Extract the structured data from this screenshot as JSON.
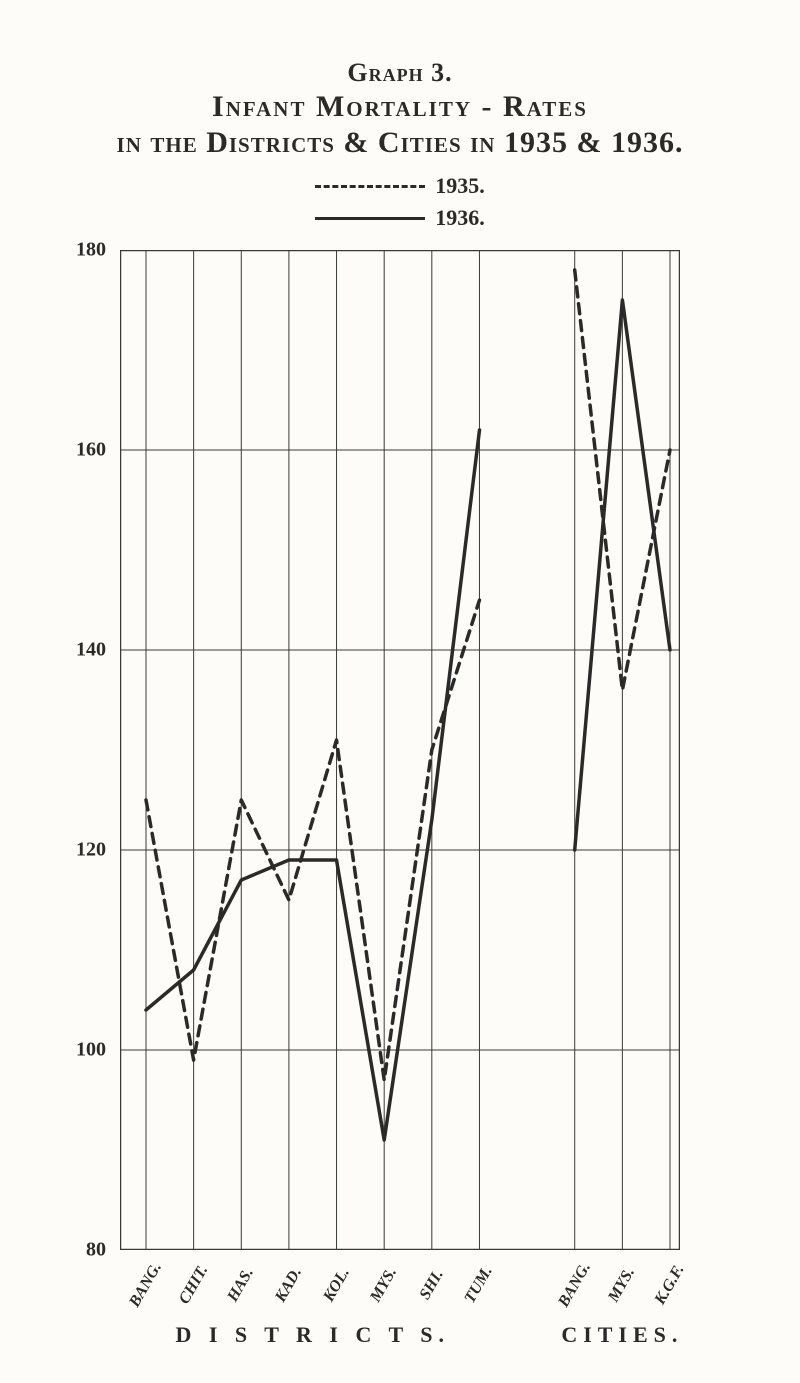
{
  "title": {
    "line1": "Graph 3.",
    "line2": "Infant Mortality - Rates",
    "line3": "in the Districts & Cities in 1935 & 1936."
  },
  "title_fontsize": 28,
  "legend": {
    "items": [
      {
        "label": "1935.",
        "style": "dashed"
      },
      {
        "label": "1936.",
        "style": "solid"
      }
    ]
  },
  "chart": {
    "type": "line",
    "background_color": "#fdfcf9",
    "line_color": "#2a2a28",
    "grid_color": "#3a3a35",
    "grid_width": 1,
    "series_width_1935": 3.5,
    "series_width_1936": 3.5,
    "dash_pattern_1935": "10,7",
    "xlabels": [
      "BANG.",
      "CHIT.",
      "HAS.",
      "KAD.",
      "KOL.",
      "MYS.",
      "SHI.",
      "TUM.",
      "BANG.",
      "MYS.",
      "K.G.F."
    ],
    "x_gap_after_index": 7,
    "x_gap_width": 1,
    "subaxis_labels": [
      {
        "text": "D I S T R I C T S.",
        "start_index": 0,
        "end_index": 7
      },
      {
        "text": "CITIES.",
        "start_index": 8,
        "end_index": 10
      }
    ],
    "xlabel_fontsize": 16,
    "xlabel_rotation": -60,
    "ymin": 80,
    "ymax": 180,
    "ytick_step": 20,
    "yticks": [
      80,
      100,
      120,
      140,
      160,
      180
    ],
    "ylabel_fontsize": 20,
    "series": {
      "y1935": [
        125,
        99,
        125,
        115,
        131,
        97,
        130,
        145,
        178,
        136,
        160
      ],
      "y1936": [
        104,
        108,
        117,
        119,
        119,
        91,
        123,
        162,
        120,
        175,
        140
      ]
    }
  }
}
